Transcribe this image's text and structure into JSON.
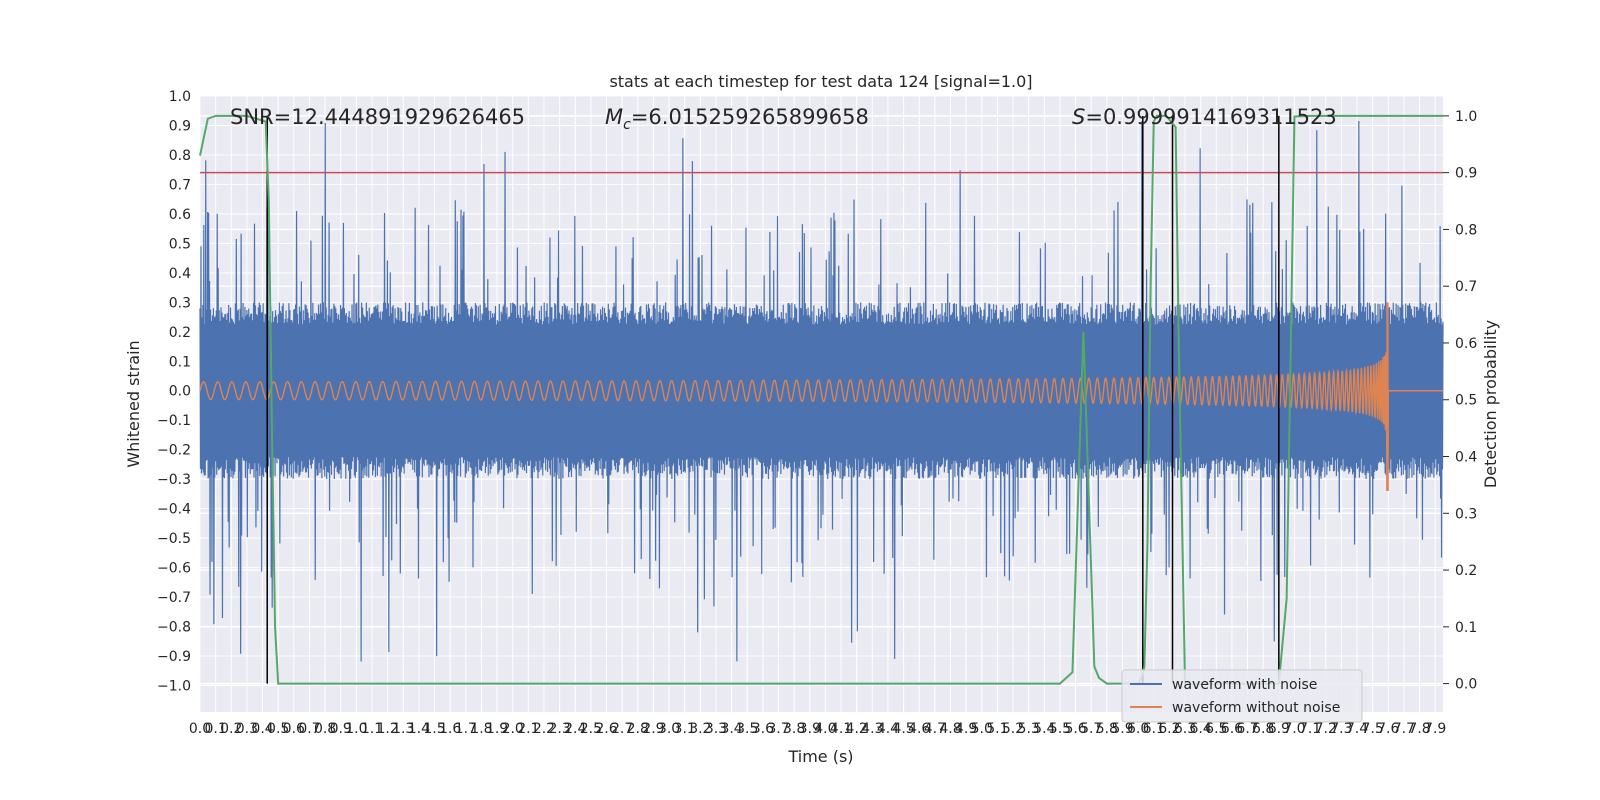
{
  "chart_data": {
    "type": "line",
    "title": "stats at each timestep for test data 124 [signal=1.0]",
    "xlabel": "Time (s)",
    "ylabel": "Whitened strain",
    "y2label": "Detection probability",
    "xlim": [
      0.0,
      7.95
    ],
    "ylim": [
      -1.09,
      1.0
    ],
    "y2lim": [
      -0.05,
      1.035
    ],
    "grid": true,
    "legend_position": "lower-right",
    "x_ticks": [
      "0.0",
      "0.1",
      "0.2",
      "0.3",
      "0.4",
      "0.5",
      "0.6",
      "0.7",
      "0.8",
      "0.9",
      "1.0",
      "1.1",
      "1.2",
      "1.3",
      "1.4",
      "1.5",
      "1.6",
      "1.7",
      "1.8",
      "1.9",
      "2.0",
      "2.1",
      "2.2",
      "2.3",
      "2.4",
      "2.5",
      "2.6",
      "2.7",
      "2.8",
      "2.9",
      "3.0",
      "3.1",
      "3.2",
      "3.3",
      "3.4",
      "3.5",
      "3.6",
      "3.7",
      "3.8",
      "3.9",
      "4.0",
      "4.1",
      "4.2",
      "4.3",
      "4.4",
      "4.5",
      "4.6",
      "4.7",
      "4.8",
      "4.9",
      "5.0",
      "5.1",
      "5.2",
      "5.3",
      "5.4",
      "5.5",
      "5.6",
      "5.7",
      "5.8",
      "5.9",
      "6.0",
      "6.1",
      "6.2",
      "6.3",
      "6.4",
      "6.5",
      "6.6",
      "6.7",
      "6.8",
      "6.9",
      "7.0",
      "7.1",
      "7.2",
      "7.3",
      "7.4",
      "7.5",
      "7.6",
      "7.7",
      "7.8",
      "7.9"
    ],
    "y_ticks": [
      "1.0",
      "0.9",
      "0.8",
      "0.7",
      "0.6",
      "0.5",
      "0.4",
      "0.3",
      "0.2",
      "0.1",
      "0.0",
      "−0.1",
      "−0.2",
      "−0.3",
      "−0.4",
      "−0.5",
      "−0.6",
      "−0.7",
      "−0.8",
      "−0.9",
      "−1.0"
    ],
    "y2_ticks": [
      "1.0",
      "0.9",
      "0.8",
      "0.7",
      "0.6",
      "0.5",
      "0.4",
      "0.3",
      "0.2",
      "0.1",
      "0.0"
    ],
    "annotations": {
      "snr": "SNR=12.444891929626465",
      "mc_symbol": "M",
      "mc_subscript": "c",
      "mc_value": "=6.015259265899658",
      "s_symbol": "S",
      "s_value": "=0.9999914169311523"
    },
    "series": [
      {
        "name": "waveform with noise",
        "color": "#4c72b0",
        "description": "whitened noisy strain, envelope roughly ±0.3 with spikes up to about ±0.9",
        "typical_amplitude": 0.3,
        "peak_amplitude": 0.92
      },
      {
        "name": "waveform without noise",
        "color": "#dd8452",
        "description": "chirp signal growing in amplitude, merger near t=7.6 s",
        "start_amplitude": 0.03,
        "merger_time": 7.6,
        "peak_amplitude": 0.3,
        "trough_amplitude": -0.34
      },
      {
        "name": "detection probability",
        "color": "#55a868",
        "axis": "y2",
        "x": [
          0.0,
          0.05,
          0.1,
          0.2,
          0.3,
          0.42,
          0.44,
          0.46,
          0.48,
          0.5,
          5.5,
          5.58,
          5.65,
          5.72,
          5.75,
          5.8,
          6.0,
          6.02,
          6.04,
          6.06,
          6.08,
          6.1,
          6.12,
          6.18,
          6.24,
          6.26,
          6.3,
          6.9,
          6.95,
          7.0,
          7.1,
          7.3,
          7.5,
          7.7,
          7.95
        ],
        "y": [
          0.93,
          0.995,
          1.0,
          1.0,
          1.0,
          0.99,
          0.85,
          0.45,
          0.1,
          0.0,
          0.0,
          0.02,
          0.62,
          0.03,
          0.01,
          0.0,
          0.0,
          0.01,
          0.03,
          0.25,
          0.7,
          0.99,
          1.0,
          1.0,
          0.98,
          0.6,
          0.0,
          0.0,
          0.15,
          0.999,
          1.0,
          1.0,
          1.0,
          1.0,
          1.0
        ]
      }
    ],
    "threshold": {
      "color": "#c44e52",
      "y2_value": 0.9
    },
    "vertical_markers": {
      "color": "#000000",
      "x": [
        0.43,
        6.03,
        6.22,
        6.9
      ]
    }
  },
  "legend": {
    "items": [
      {
        "label": "waveform with noise",
        "color": "#4c72b0"
      },
      {
        "label": "waveform without noise",
        "color": "#dd8452"
      }
    ]
  }
}
